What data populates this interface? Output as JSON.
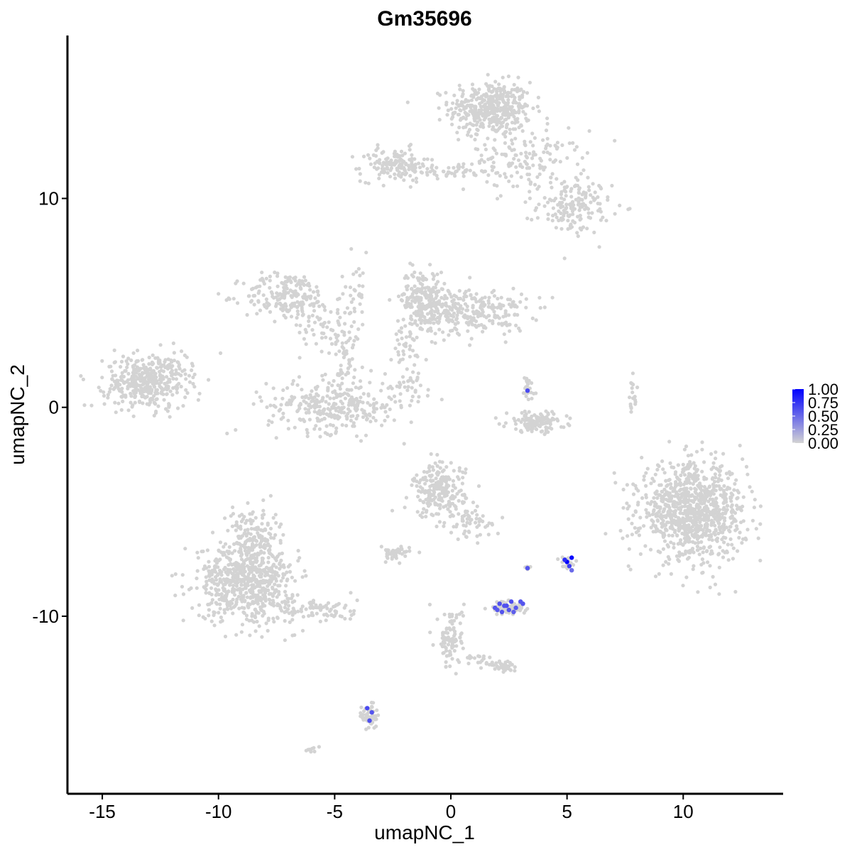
{
  "chart_data": {
    "type": "scatter",
    "title": "Gm35696",
    "xlabel": "umapNC_1",
    "ylabel": "umapNC_2",
    "xlim": [
      -16.5,
      14.3
    ],
    "ylim": [
      -18.5,
      17.8
    ],
    "x_ticks": [
      -15,
      -10,
      -5,
      0,
      5,
      10
    ],
    "y_ticks": [
      -10,
      0,
      10
    ],
    "x_tick_labels": [
      "-15",
      "-10",
      "-5",
      "0",
      "5",
      "10"
    ],
    "y_tick_labels": [
      "-10",
      "0",
      "10"
    ],
    "low_color": "#d3d3d3",
    "high_color": "#0000ff",
    "legend": {
      "position": "right",
      "labels": [
        "1.00",
        "0.75",
        "0.50",
        "0.25",
        "0.00"
      ],
      "values": [
        1.0,
        0.75,
        0.5,
        0.25,
        0.0
      ]
    },
    "clusters": [
      {
        "cx": 1.7,
        "cy": 14.3,
        "sx": 1.1,
        "sy": 0.8,
        "n": 420
      },
      {
        "cx": 3.2,
        "cy": 11.8,
        "sx": 1.6,
        "sy": 0.9,
        "n": 160
      },
      {
        "cx": 5.3,
        "cy": 9.6,
        "sx": 1.0,
        "sy": 0.8,
        "n": 160
      },
      {
        "cx": -2.4,
        "cy": 11.6,
        "sx": 0.9,
        "sy": 0.5,
        "n": 140
      },
      {
        "cx": 0.0,
        "cy": 11.3,
        "sx": 1.0,
        "sy": 0.2,
        "n": 40
      },
      {
        "cx": -7.0,
        "cy": 5.3,
        "sx": 1.2,
        "sy": 0.7,
        "n": 200
      },
      {
        "cx": -5.2,
        "cy": 3.9,
        "sx": 0.8,
        "sy": 0.8,
        "n": 60
      },
      {
        "cx": -4.1,
        "cy": 5.5,
        "sx": 0.4,
        "sy": 1.2,
        "n": 30
      },
      {
        "cx": -5.0,
        "cy": 0.1,
        "sx": 1.8,
        "sy": 0.8,
        "n": 320
      },
      {
        "cx": -4.5,
        "cy": 2.0,
        "sx": 0.3,
        "sy": 1.3,
        "n": 40
      },
      {
        "cx": -1.2,
        "cy": 5.3,
        "sx": 0.6,
        "sy": 0.8,
        "n": 180
      },
      {
        "cx": 0.7,
        "cy": 4.6,
        "sx": 1.6,
        "sy": 0.7,
        "n": 300
      },
      {
        "cx": -2.0,
        "cy": 2.7,
        "sx": 0.6,
        "sy": 0.8,
        "n": 40
      },
      {
        "cx": -1.8,
        "cy": 1.0,
        "sx": 0.8,
        "sy": 0.5,
        "n": 25
      },
      {
        "cx": -13.1,
        "cy": 1.2,
        "sx": 1.1,
        "sy": 0.8,
        "n": 380
      },
      {
        "cx": -11.8,
        "cy": 1.9,
        "sx": 0.5,
        "sy": 0.5,
        "n": 25
      },
      {
        "cx": 3.7,
        "cy": -0.7,
        "sx": 0.8,
        "sy": 0.3,
        "n": 130
      },
      {
        "cx": 3.3,
        "cy": 0.9,
        "sx": 0.2,
        "sy": 0.5,
        "n": 25
      },
      {
        "cx": 7.8,
        "cy": 0.4,
        "sx": 0.15,
        "sy": 0.6,
        "n": 18
      },
      {
        "cx": 10.4,
        "cy": -5.0,
        "sx": 1.4,
        "sy": 1.4,
        "n": 950
      },
      {
        "cx": -0.5,
        "cy": -4.0,
        "sx": 0.7,
        "sy": 0.8,
        "n": 220
      },
      {
        "cx": 0.8,
        "cy": -5.5,
        "sx": 0.6,
        "sy": 0.5,
        "n": 60
      },
      {
        "cx": -2.4,
        "cy": -7.0,
        "sx": 0.4,
        "sy": 0.2,
        "n": 50
      },
      {
        "cx": -8.8,
        "cy": -8.3,
        "sx": 1.3,
        "sy": 1.2,
        "n": 650
      },
      {
        "cx": -8.5,
        "cy": -6.0,
        "sx": 0.7,
        "sy": 0.8,
        "n": 120
      },
      {
        "cx": -5.8,
        "cy": -9.7,
        "sx": 1.1,
        "sy": 0.4,
        "n": 90
      },
      {
        "cx": 0.0,
        "cy": -11.0,
        "sx": 0.35,
        "sy": 0.9,
        "n": 90
      },
      {
        "cx": 2.3,
        "cy": -12.4,
        "sx": 0.4,
        "sy": 0.2,
        "n": 40
      },
      {
        "cx": 1.0,
        "cy": -12.1,
        "sx": 0.7,
        "sy": 0.2,
        "n": 20
      },
      {
        "cx": 2.5,
        "cy": -9.6,
        "sx": 0.45,
        "sy": 0.2,
        "n": 80
      },
      {
        "cx": 5.0,
        "cy": -7.4,
        "sx": 0.2,
        "sy": 0.2,
        "n": 20
      },
      {
        "cx": 3.3,
        "cy": -7.7,
        "sx": 0.1,
        "sy": 0.1,
        "n": 6
      },
      {
        "cx": -3.5,
        "cy": -14.8,
        "sx": 0.2,
        "sy": 0.4,
        "n": 50
      },
      {
        "cx": -6.0,
        "cy": -16.4,
        "sx": 0.15,
        "sy": 0.1,
        "n": 8
      }
    ],
    "expressing_points": [
      {
        "x": 5.0,
        "y": -7.4,
        "v": 1.0
      },
      {
        "x": 5.2,
        "y": -7.2,
        "v": 0.95
      },
      {
        "x": 5.1,
        "y": -7.6,
        "v": 0.7
      },
      {
        "x": 4.9,
        "y": -7.3,
        "v": 0.8
      },
      {
        "x": 5.2,
        "y": -7.8,
        "v": 0.5
      },
      {
        "x": 3.3,
        "y": -7.7,
        "v": 0.6
      },
      {
        "x": 3.3,
        "y": 0.8,
        "v": 0.65
      },
      {
        "x": 1.9,
        "y": -9.6,
        "v": 0.6
      },
      {
        "x": 2.1,
        "y": -9.4,
        "v": 0.62
      },
      {
        "x": 2.2,
        "y": -9.8,
        "v": 0.6
      },
      {
        "x": 2.4,
        "y": -9.5,
        "v": 0.63
      },
      {
        "x": 2.5,
        "y": -9.7,
        "v": 0.6
      },
      {
        "x": 2.6,
        "y": -9.3,
        "v": 0.62
      },
      {
        "x": 2.8,
        "y": -9.6,
        "v": 0.58
      },
      {
        "x": 3.0,
        "y": -9.3,
        "v": 0.6
      },
      {
        "x": 3.1,
        "y": -9.4,
        "v": 0.6
      },
      {
        "x": 2.0,
        "y": -9.7,
        "v": 0.58
      },
      {
        "x": 2.3,
        "y": -9.5,
        "v": 0.61
      },
      {
        "x": 2.7,
        "y": -9.8,
        "v": 0.55
      },
      {
        "x": -3.6,
        "y": -14.4,
        "v": 0.65
      },
      {
        "x": -3.4,
        "y": -14.6,
        "v": 0.6
      },
      {
        "x": -3.5,
        "y": -15.0,
        "v": 0.62
      }
    ]
  }
}
